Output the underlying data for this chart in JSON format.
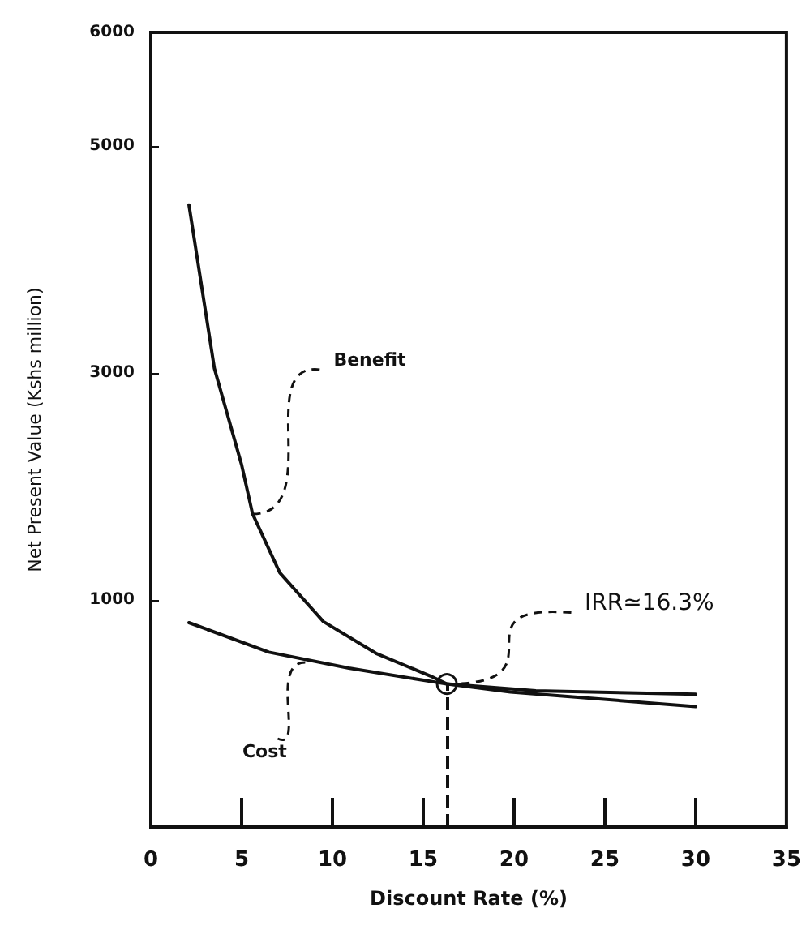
{
  "chart_data": {
    "type": "line",
    "xlabel": "Discount Rate (%)",
    "ylabel": "Net Present Value (Kshs million)",
    "xlim": [
      0,
      35
    ],
    "xticks": [
      0,
      5,
      10,
      15,
      20,
      25,
      30,
      35
    ],
    "ylim": [
      -1000,
      6000
    ],
    "yticks": [
      1000,
      3000,
      5000,
      6000
    ],
    "grid": false,
    "marker": "none",
    "line_style": "solid",
    "series": [
      {
        "color": "#111111",
        "x": [
          2.1,
          3.5,
          5.0,
          5.6,
          7.1,
          9.5,
          12.4,
          15.4,
          16.3,
          19.8,
          30
        ],
        "values": [
          4480,
          3040,
          2190,
          1760,
          1240,
          810,
          530,
          330,
          260,
          190,
          60
        ]
      },
      {
        "color": "#111111",
        "x": [
          2.1,
          6.5,
          10.9,
          16.3,
          21.2,
          30
        ],
        "values": [
          800,
          540,
          400,
          260,
          200,
          170
        ]
      }
    ],
    "ref_lines": [
      {
        "axis": "x",
        "value": 16.3,
        "line_style": "dashed",
        "color": "#111111"
      }
    ],
    "annotations": [
      {
        "text": "Benefit",
        "x": 5.6,
        "y": 1757
      },
      {
        "text": "Cost",
        "x": 8.5,
        "y": 450
      },
      {
        "text": "IRR≃16.3%",
        "x": 16.3,
        "y": 260
      }
    ]
  }
}
